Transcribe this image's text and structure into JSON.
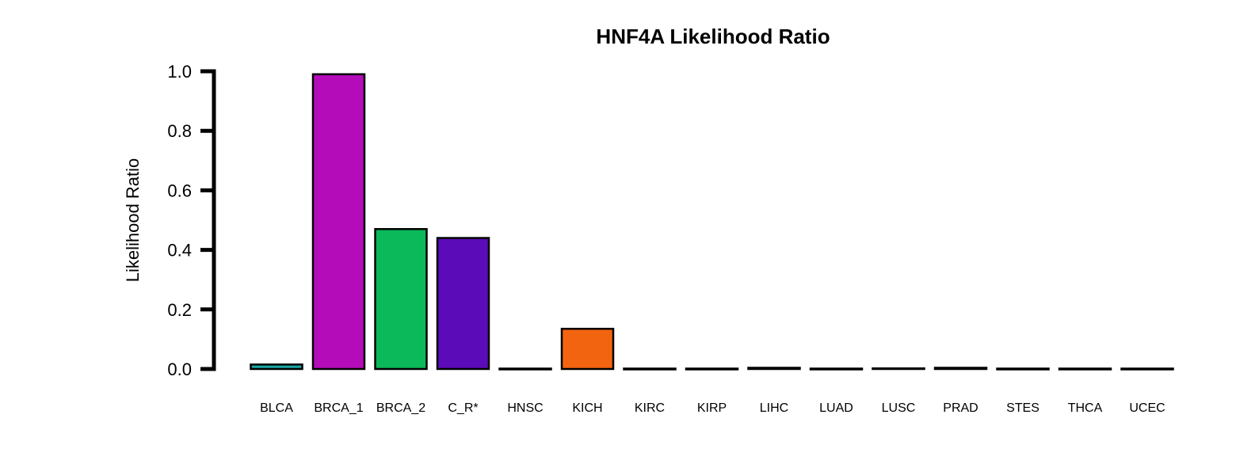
{
  "chart_data": {
    "type": "bar",
    "title": "HNF4A Likelihood Ratio",
    "xlabel": "",
    "ylabel": "Likelihood Ratio",
    "ylim": [
      0,
      1.0
    ],
    "yticks": [
      "0.0",
      "0.2",
      "0.4",
      "0.6",
      "0.8",
      "1.0"
    ],
    "ytick_values": [
      0,
      0.2,
      0.4,
      0.6,
      0.8,
      1.0
    ],
    "grid": false,
    "categories": [
      "BLCA",
      "BRCA_1",
      "BRCA_2",
      "C_R*",
      "HNSC",
      "KICH",
      "KIRC",
      "KIRP",
      "LIHC",
      "LUAD",
      "LUSC",
      "PRAD",
      "STES",
      "THCA",
      "UCEC"
    ],
    "values": [
      0.015,
      0.99,
      0.47,
      0.44,
      0.0,
      0.135,
      0.0,
      0.0,
      0.004,
      0.0,
      0.002,
      0.004,
      0.0,
      0.0,
      0.0
    ],
    "colors": [
      "#1aa6a6",
      "#b30cb8",
      "#0bb85a",
      "#5b0bb8",
      "#999999",
      "#f26410",
      "#999999",
      "#999999",
      "#999999",
      "#999999",
      "#999999",
      "#999999",
      "#999999",
      "#999999",
      "#999999"
    ]
  }
}
